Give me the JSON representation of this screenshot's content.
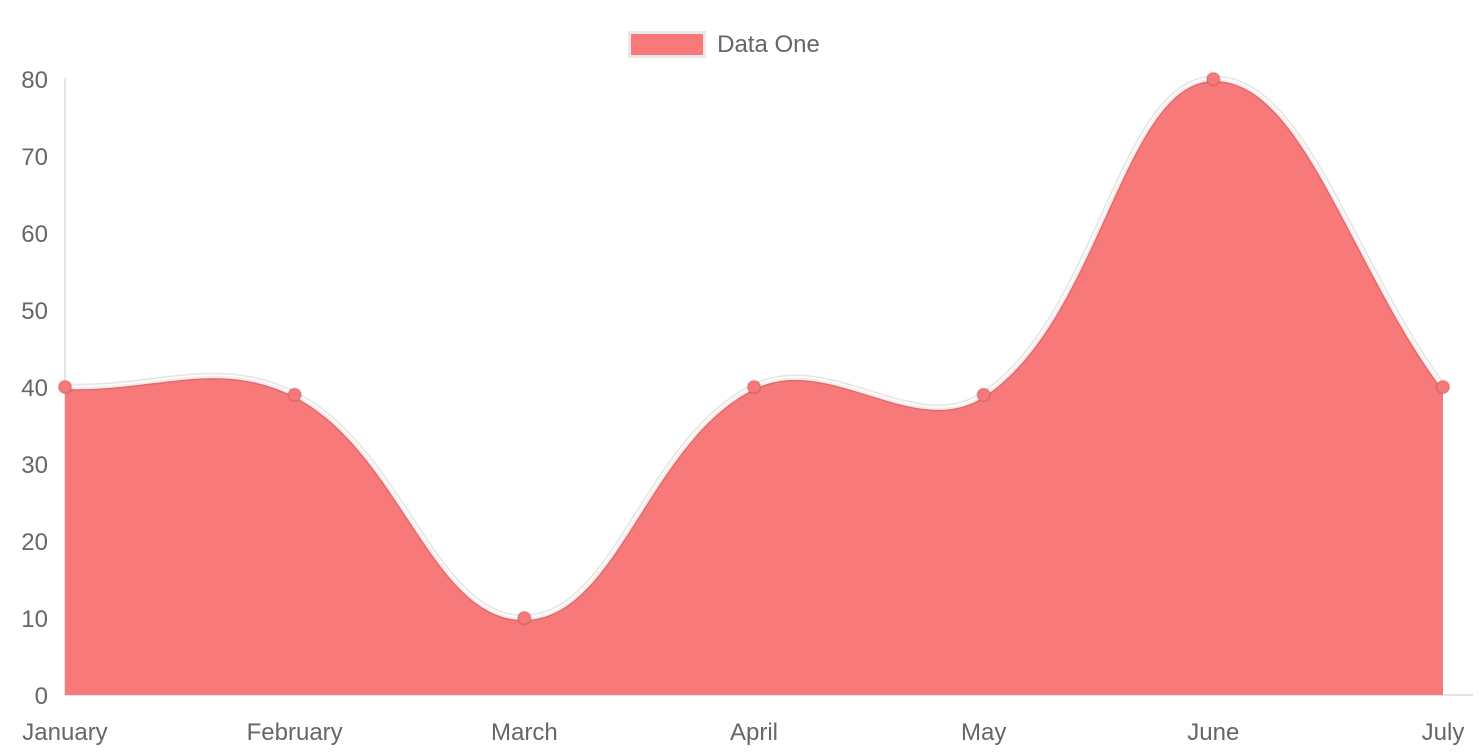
{
  "chart_data": {
    "type": "area",
    "title": "",
    "categories": [
      "January",
      "February",
      "March",
      "April",
      "May",
      "June",
      "July"
    ],
    "series": [
      {
        "name": "Data One",
        "values": [
          40,
          39,
          10,
          40,
          39,
          80,
          40
        ],
        "fill_color": "#f87979",
        "point_color": "#f87979",
        "line_color": "rgba(0,0,0,0.10)"
      }
    ],
    "xlabel": "",
    "ylabel": "",
    "ylim": [
      0,
      80
    ],
    "y_ticks": [
      0,
      10,
      20,
      30,
      40,
      50,
      60,
      70,
      80
    ],
    "grid": "off",
    "curve": "bezier-tension-0.4",
    "legend_position": "top",
    "axis_color": "rgba(0,0,0,0.10)",
    "tick_label_color": "#666666"
  },
  "legend": {
    "items": [
      {
        "label": "Data One",
        "swatch_color": "#f87979"
      }
    ]
  }
}
